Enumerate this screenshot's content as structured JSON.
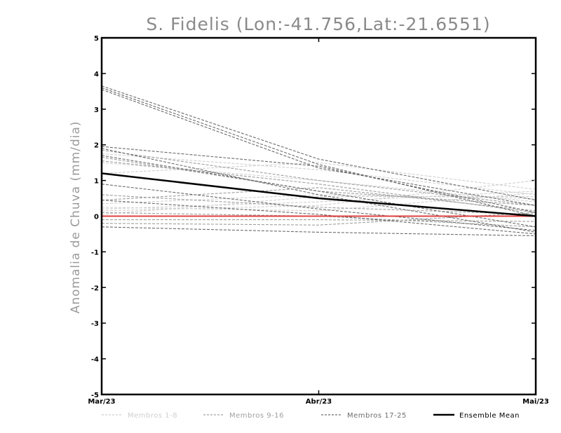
{
  "chart_data": {
    "type": "line",
    "title": "S. Fidelis (Lon:-41.756,Lat:-21.6551)",
    "ylabel": "Anomalia de Chuva (mm/dia)",
    "xlabel": "",
    "categories": [
      "Mar/23",
      "Abr/23",
      "Mai/23"
    ],
    "ylim": [
      -5,
      5
    ],
    "yticks": [
      -5,
      -4,
      -3,
      -2,
      -1,
      0,
      1,
      2,
      3,
      4,
      5
    ],
    "grid": false,
    "legend_position": "bottom",
    "legend": [
      {
        "label": "Membros 1-8",
        "color": "#cfcfcf",
        "style": "dashed"
      },
      {
        "label": "Membros 9-16",
        "color": "#a0a0a0",
        "style": "dashed"
      },
      {
        "label": "Membros 17-25",
        "color": "#6e6e6e",
        "style": "dashed"
      },
      {
        "label": "Ensemble Mean",
        "color": "#000000",
        "style": "solid"
      }
    ],
    "groups": [
      {
        "color": "#d0d0d0",
        "series": [
          {
            "values": [
              0.15,
              0.3,
              1.0
            ]
          },
          {
            "values": [
              1.2,
              1.5,
              0.75
            ]
          },
          {
            "values": [
              0.2,
              0.4,
              0.7
            ]
          },
          {
            "values": [
              0.05,
              0.55,
              0.55
            ]
          },
          {
            "values": [
              1.75,
              1.3,
              0.6
            ]
          },
          {
            "values": [
              0.35,
              0.6,
              0.5
            ]
          },
          {
            "values": [
              0.25,
              0.15,
              0.65
            ]
          },
          {
            "values": [
              1.5,
              1.0,
              0.4
            ]
          }
        ]
      },
      {
        "color": "#9e9e9e",
        "series": [
          {
            "values": [
              1.55,
              0.9,
              0.1
            ]
          },
          {
            "values": [
              1.85,
              1.0,
              0.3
            ]
          },
          {
            "values": [
              0.45,
              0.8,
              0.15
            ]
          },
          {
            "values": [
              0.6,
              0.25,
              0.05
            ]
          },
          {
            "values": [
              -0.1,
              -0.1,
              -0.15
            ]
          },
          {
            "values": [
              -0.2,
              -0.25,
              0.1
            ]
          },
          {
            "values": [
              0.1,
              0.0,
              -0.3
            ]
          },
          {
            "values": [
              1.65,
              0.7,
              0.3
            ]
          }
        ]
      },
      {
        "color": "#6a6a6a",
        "series": [
          {
            "values": [
              3.65,
              1.6,
              0.45
            ]
          },
          {
            "values": [
              3.6,
              1.45,
              0.0
            ]
          },
          {
            "values": [
              3.55,
              1.35,
              0.3
            ]
          },
          {
            "values": [
              1.95,
              1.4,
              0.1
            ]
          },
          {
            "values": [
              1.9,
              0.6,
              -0.45
            ]
          },
          {
            "values": [
              1.7,
              0.7,
              -0.3
            ]
          },
          {
            "values": [
              0.9,
              0.2,
              -0.4
            ]
          },
          {
            "values": [
              0.45,
              0.05,
              -0.5
            ]
          },
          {
            "values": [
              -0.3,
              -0.45,
              -0.55
            ]
          }
        ]
      }
    ],
    "ensemble_mean": {
      "name": "Ensemble Mean",
      "values": [
        1.2,
        0.5,
        0.0
      ],
      "color": "#000000"
    },
    "zero_line": {
      "values": [
        0,
        0,
        0
      ],
      "color": "#e04040"
    }
  }
}
